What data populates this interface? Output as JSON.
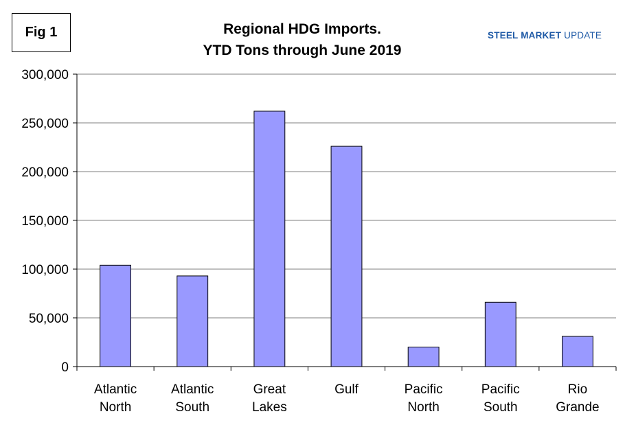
{
  "fig_label": "Fig 1",
  "brand": {
    "part1": "STEEL MARKET",
    "part2": "UPDATE",
    "color": "#1f5aa6"
  },
  "chart_data": {
    "type": "bar",
    "title_lines": [
      "Regional HDG Imports.",
      "YTD Tons through June 2019"
    ],
    "categories": [
      [
        "Atlantic",
        "North"
      ],
      [
        "Atlantic",
        "South"
      ],
      [
        "Great",
        "Lakes"
      ],
      [
        "Gulf"
      ],
      [
        "Pacific",
        "North"
      ],
      [
        "Pacific",
        "South"
      ],
      [
        "Rio",
        "Grande"
      ]
    ],
    "values": [
      104000,
      93000,
      262000,
      226000,
      20000,
      66000,
      31000
    ],
    "ylim": [
      0,
      300000
    ],
    "yticks": [
      0,
      50000,
      100000,
      150000,
      200000,
      250000,
      300000
    ],
    "ytick_labels": [
      "0",
      "50,000",
      "100,000",
      "150,000",
      "200,000",
      "250,000",
      "300,000"
    ],
    "grid": true,
    "bar_color": "#9999ff",
    "bar_edge_color": "#000000"
  }
}
